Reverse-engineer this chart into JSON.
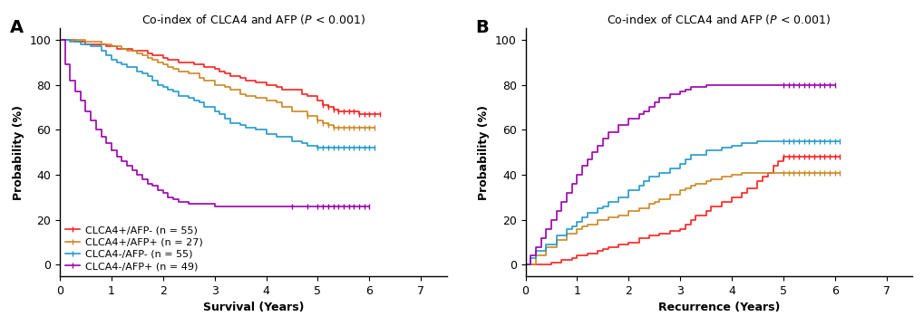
{
  "panel_A": {
    "title": "Co-index of CLCA4 and AFP (P < 0.001)",
    "xlabel": "Survival (Years)",
    "ylabel": "Probability (%)",
    "panel_label": "A",
    "xlim": [
      0,
      7.5
    ],
    "ylim": [
      -5,
      105
    ],
    "yticks": [
      0,
      20,
      40,
      60,
      80,
      100
    ],
    "xticks": [
      0,
      1,
      2,
      3,
      4,
      5,
      6,
      7
    ],
    "series": [
      {
        "label": "CLCA4+/AFP- (n = 55)",
        "color": "#FF2020",
        "times": [
          0,
          0.1,
          0.3,
          0.5,
          0.7,
          0.9,
          1.0,
          1.1,
          1.2,
          1.4,
          1.5,
          1.6,
          1.7,
          1.8,
          1.9,
          2.0,
          2.1,
          2.2,
          2.3,
          2.5,
          2.6,
          2.7,
          2.8,
          3.0,
          3.1,
          3.2,
          3.3,
          3.5,
          3.6,
          3.8,
          4.0,
          4.2,
          4.3,
          4.5,
          4.7,
          4.8,
          5.0,
          5.1,
          5.2,
          5.3,
          5.4,
          5.5,
          5.6,
          5.7,
          5.8,
          5.9,
          6.0,
          6.1,
          6.2
        ],
        "probs": [
          100,
          100,
          99,
          98,
          98,
          97,
          97,
          96,
          96,
          95,
          95,
          95,
          94,
          93,
          93,
          92,
          91,
          91,
          90,
          90,
          89,
          89,
          88,
          87,
          86,
          85,
          84,
          83,
          82,
          81,
          80,
          79,
          78,
          78,
          76,
          75,
          73,
          71,
          70,
          69,
          68,
          68,
          68,
          68,
          67,
          67,
          67,
          67,
          67
        ],
        "censor_times": [
          5.1,
          5.2,
          5.3,
          5.4,
          5.5,
          5.6,
          5.7,
          5.8,
          5.9,
          6.0,
          6.1,
          6.2
        ],
        "censor_probs": [
          71,
          70,
          69,
          68,
          68,
          68,
          68,
          67,
          67,
          67,
          67,
          67
        ]
      },
      {
        "label": "CLCA4+/AFP+ (n = 27)",
        "color": "#CC8822",
        "times": [
          0,
          0.3,
          0.5,
          0.8,
          1.0,
          1.1,
          1.2,
          1.3,
          1.5,
          1.6,
          1.7,
          1.8,
          1.9,
          2.0,
          2.1,
          2.2,
          2.3,
          2.5,
          2.7,
          2.8,
          3.0,
          3.2,
          3.3,
          3.5,
          3.6,
          3.8,
          4.0,
          4.2,
          4.3,
          4.5,
          4.8,
          5.0,
          5.1,
          5.2,
          5.3,
          5.4,
          5.5,
          5.6,
          5.7,
          5.8,
          5.9,
          6.0,
          6.1
        ],
        "probs": [
          100,
          100,
          99,
          98,
          97,
          97,
          96,
          95,
          94,
          93,
          92,
          91,
          90,
          89,
          88,
          87,
          86,
          85,
          83,
          82,
          80,
          79,
          78,
          76,
          75,
          74,
          73,
          72,
          70,
          68,
          66,
          64,
          63,
          62,
          61,
          61,
          61,
          61,
          61,
          61,
          61,
          61,
          61
        ],
        "censor_times": [
          4.8,
          5.0,
          5.1,
          5.2,
          5.3,
          5.4,
          5.5,
          5.6,
          5.7,
          5.8,
          5.9,
          6.0,
          6.1
        ],
        "censor_probs": [
          66,
          64,
          63,
          62,
          61,
          61,
          61,
          61,
          61,
          61,
          61,
          61,
          61
        ]
      },
      {
        "label": "CLCA4-/AFP- (n = 55)",
        "color": "#2299CC",
        "times": [
          0,
          0.2,
          0.4,
          0.6,
          0.8,
          0.9,
          1.0,
          1.1,
          1.2,
          1.3,
          1.5,
          1.6,
          1.7,
          1.8,
          1.9,
          2.0,
          2.1,
          2.2,
          2.3,
          2.5,
          2.6,
          2.7,
          2.8,
          3.0,
          3.1,
          3.2,
          3.3,
          3.5,
          3.6,
          3.8,
          4.0,
          4.2,
          4.5,
          4.7,
          4.8,
          5.0,
          5.1,
          5.2,
          5.3,
          5.4,
          5.5,
          5.6,
          5.7,
          5.8,
          5.9,
          6.0,
          6.1
        ],
        "probs": [
          100,
          99,
          98,
          97,
          95,
          93,
          91,
          90,
          89,
          88,
          86,
          85,
          84,
          82,
          80,
          79,
          78,
          77,
          75,
          74,
          73,
          72,
          70,
          68,
          67,
          65,
          63,
          62,
          61,
          60,
          58,
          57,
          55,
          54,
          53,
          52,
          52,
          52,
          52,
          52,
          52,
          52,
          52,
          52,
          52,
          52,
          52
        ],
        "censor_times": [
          5.0,
          5.1,
          5.2,
          5.3,
          5.4,
          5.5,
          5.6,
          5.7,
          5.8,
          5.9,
          6.0,
          6.1
        ],
        "censor_probs": [
          52,
          52,
          52,
          52,
          52,
          52,
          52,
          52,
          52,
          52,
          52,
          52
        ]
      },
      {
        "label": "CLCA4-/AFP+ (n = 49)",
        "color": "#9900AA",
        "times": [
          0,
          0.1,
          0.2,
          0.3,
          0.4,
          0.5,
          0.6,
          0.7,
          0.8,
          0.9,
          1.0,
          1.1,
          1.2,
          1.3,
          1.4,
          1.5,
          1.6,
          1.7,
          1.8,
          1.9,
          2.0,
          2.1,
          2.2,
          2.3,
          2.5,
          2.6,
          2.7,
          2.8,
          3.0,
          3.1,
          3.2,
          3.3,
          3.5,
          3.6,
          3.8,
          4.0,
          4.5,
          4.8,
          5.0,
          5.1,
          5.2,
          5.3,
          5.4,
          5.5,
          5.6,
          5.7,
          5.8,
          5.9,
          6.0
        ],
        "probs": [
          100,
          89,
          82,
          77,
          73,
          68,
          64,
          60,
          57,
          54,
          51,
          48,
          46,
          44,
          42,
          40,
          38,
          36,
          35,
          33,
          32,
          30,
          29,
          28,
          27,
          27,
          27,
          27,
          26,
          26,
          26,
          26,
          26,
          26,
          26,
          26,
          26,
          26,
          26,
          26,
          26,
          26,
          26,
          26,
          26,
          26,
          26,
          26,
          26
        ],
        "censor_times": [
          4.5,
          4.8,
          5.0,
          5.1,
          5.2,
          5.3,
          5.4,
          5.5,
          5.6,
          5.7,
          5.8,
          5.9,
          6.0
        ],
        "censor_probs": [
          26,
          26,
          26,
          26,
          26,
          26,
          26,
          26,
          26,
          26,
          26,
          26,
          26
        ]
      }
    ]
  },
  "panel_B": {
    "title": "Co-index of CLCA4 and AFP (P < 0.001)",
    "xlabel": "Recurrence (Years)",
    "ylabel": "Probability (%)",
    "panel_label": "B",
    "xlim": [
      0,
      7.5
    ],
    "ylim": [
      -5,
      105
    ],
    "yticks": [
      0,
      20,
      40,
      60,
      80,
      100
    ],
    "xticks": [
      0,
      1,
      2,
      3,
      4,
      5,
      6,
      7
    ],
    "series": [
      {
        "label": "CLCA4+/AFP- (n = 55)",
        "color": "#FF2020",
        "times": [
          0,
          0.3,
          0.5,
          0.7,
          0.9,
          1.0,
          1.2,
          1.4,
          1.5,
          1.6,
          1.8,
          2.0,
          2.2,
          2.4,
          2.6,
          2.8,
          3.0,
          3.1,
          3.2,
          3.3,
          3.5,
          3.6,
          3.8,
          4.0,
          4.2,
          4.3,
          4.5,
          4.6,
          4.7,
          4.8,
          4.9,
          5.0,
          5.1,
          5.2,
          5.3,
          5.4,
          5.5,
          5.6,
          5.7,
          5.8,
          5.9,
          6.0,
          6.1
        ],
        "probs": [
          0,
          0,
          1,
          2,
          3,
          4,
          5,
          6,
          7,
          8,
          9,
          10,
          12,
          13,
          14,
          15,
          16,
          18,
          20,
          22,
          24,
          26,
          28,
          30,
          32,
          34,
          37,
          39,
          41,
          44,
          46,
          48,
          48,
          48,
          48,
          48,
          48,
          48,
          48,
          48,
          48,
          48,
          48
        ],
        "censor_times": [
          5.0,
          5.1,
          5.2,
          5.3,
          5.4,
          5.5,
          5.6,
          5.7,
          5.8,
          5.9,
          6.0,
          6.1
        ],
        "censor_probs": [
          48,
          48,
          48,
          48,
          48,
          48,
          48,
          48,
          48,
          48,
          48,
          48
        ]
      },
      {
        "label": "CLCA4+/AFP+ (n = 27)",
        "color": "#CC8822",
        "times": [
          0,
          0.2,
          0.4,
          0.6,
          0.8,
          1.0,
          1.1,
          1.2,
          1.4,
          1.6,
          1.8,
          2.0,
          2.2,
          2.4,
          2.5,
          2.6,
          2.8,
          3.0,
          3.1,
          3.2,
          3.3,
          3.5,
          3.6,
          3.8,
          4.0,
          4.2,
          4.5,
          4.7,
          5.0,
          5.1,
          5.2,
          5.3,
          5.4,
          5.5,
          5.6,
          5.7,
          5.8,
          5.9,
          6.0,
          6.1
        ],
        "probs": [
          0,
          4,
          8,
          11,
          14,
          16,
          17,
          18,
          20,
          21,
          22,
          24,
          25,
          27,
          28,
          29,
          31,
          33,
          34,
          35,
          36,
          37,
          38,
          39,
          40,
          41,
          41,
          41,
          41,
          41,
          41,
          41,
          41,
          41,
          41,
          41,
          41,
          41,
          41,
          41
        ],
        "censor_times": [
          5.0,
          5.1,
          5.2,
          5.3,
          5.4,
          5.5,
          5.6,
          5.7,
          5.8,
          5.9,
          6.0,
          6.1
        ],
        "censor_probs": [
          41,
          41,
          41,
          41,
          41,
          41,
          41,
          41,
          41,
          41,
          41,
          41
        ]
      },
      {
        "label": "CLCA4-/AFP- (n = 55)",
        "color": "#2299CC",
        "times": [
          0,
          0.1,
          0.2,
          0.4,
          0.6,
          0.8,
          0.9,
          1.0,
          1.1,
          1.2,
          1.4,
          1.5,
          1.6,
          1.8,
          2.0,
          2.2,
          2.3,
          2.4,
          2.6,
          2.8,
          3.0,
          3.1,
          3.2,
          3.5,
          3.8,
          4.0,
          4.2,
          4.5,
          4.7,
          5.0,
          5.1,
          5.2,
          5.3,
          5.4,
          5.5,
          5.6,
          5.7,
          5.8,
          5.9,
          6.0,
          6.1
        ],
        "probs": [
          0,
          3,
          6,
          9,
          13,
          16,
          17,
          19,
          21,
          23,
          25,
          26,
          28,
          30,
          33,
          35,
          37,
          39,
          41,
          43,
          45,
          47,
          49,
          51,
          52,
          53,
          54,
          55,
          55,
          55,
          55,
          55,
          55,
          55,
          55,
          55,
          55,
          55,
          55,
          55,
          55
        ],
        "censor_times": [
          5.0,
          5.1,
          5.2,
          5.3,
          5.4,
          5.5,
          5.6,
          5.7,
          5.8,
          5.9,
          6.0,
          6.1
        ],
        "censor_probs": [
          55,
          55,
          55,
          55,
          55,
          55,
          55,
          55,
          55,
          55,
          55,
          55
        ]
      },
      {
        "label": "CLCA4-/AFP+ (n = 49)",
        "color": "#9900AA",
        "times": [
          0,
          0.1,
          0.2,
          0.3,
          0.4,
          0.5,
          0.6,
          0.7,
          0.8,
          0.9,
          1.0,
          1.1,
          1.2,
          1.3,
          1.4,
          1.5,
          1.6,
          1.8,
          2.0,
          2.2,
          2.3,
          2.4,
          2.5,
          2.6,
          2.8,
          3.0,
          3.1,
          3.2,
          3.5,
          3.8,
          4.0,
          4.5,
          5.0,
          5.1,
          5.2,
          5.3,
          5.4,
          5.5,
          5.6,
          5.7,
          5.8,
          5.9,
          6.0
        ],
        "probs": [
          0,
          4,
          8,
          12,
          16,
          20,
          24,
          28,
          32,
          36,
          40,
          44,
          47,
          50,
          53,
          56,
          59,
          62,
          65,
          67,
          68,
          70,
          72,
          74,
          76,
          77,
          78,
          79,
          80,
          80,
          80,
          80,
          80,
          80,
          80,
          80,
          80,
          80,
          80,
          80,
          80,
          80,
          80
        ],
        "censor_times": [
          5.0,
          5.1,
          5.2,
          5.3,
          5.4,
          5.5,
          5.6,
          5.7,
          5.8,
          5.9,
          6.0
        ],
        "censor_probs": [
          80,
          80,
          80,
          80,
          80,
          80,
          80,
          80,
          80,
          80,
          80
        ]
      }
    ]
  },
  "legend_labels": [
    "CLCA4+/AFP- (n = 55)",
    "CLCA4+/AFP+ (n = 27)",
    "CLCA4-/AFP- (n = 55)",
    "CLCA4-/AFP+ (n = 49)"
  ],
  "legend_colors": [
    "#FF2020",
    "#CC8822",
    "#2299CC",
    "#9900AA"
  ],
  "figure_bgcolor": "#FFFFFF",
  "font_size": 9,
  "title_font_size": 9,
  "label_font_size": 9,
  "legend_font_size": 8
}
